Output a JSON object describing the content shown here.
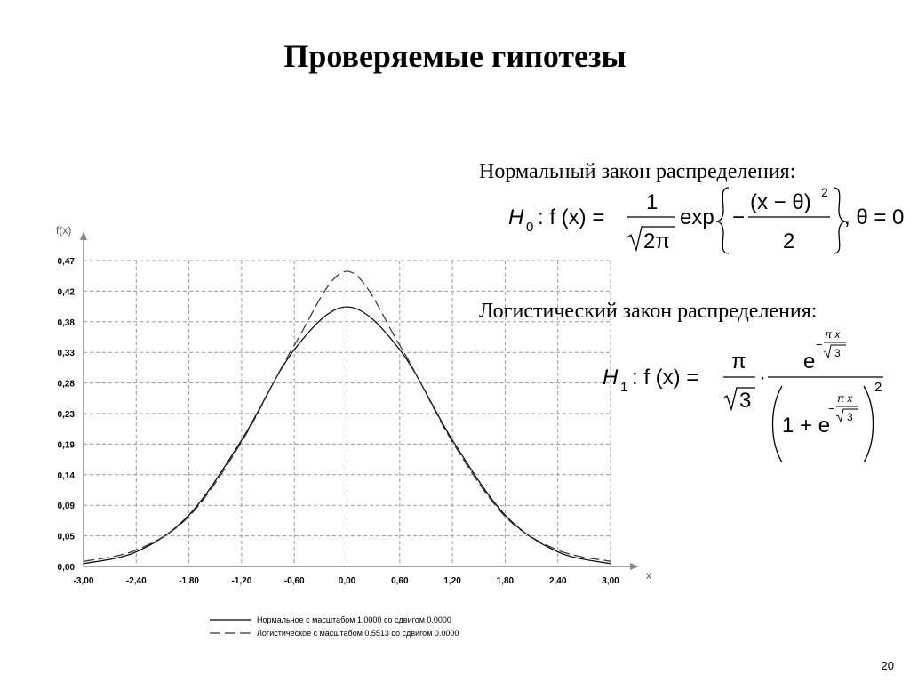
{
  "slide": {
    "title": "Проверяемые гипотезы",
    "page_number": "20"
  },
  "hypotheses": {
    "h0": {
      "heading": "Нормальный закон распределения:",
      "lhs": "H",
      "subscript": "0",
      "func": ": f (x) =",
      "numerator": "1",
      "denominator": "2π",
      "exp": "exp",
      "minus": "−",
      "exp_numerator": "(x − θ)",
      "exp_power": "2",
      "exp_denominator": "2",
      "condition": ", θ = 0"
    },
    "h1": {
      "heading": "Логистический закон распределения:",
      "lhs": "H",
      "subscript": "1",
      "func": ": f (x) =",
      "pi": "π",
      "sqrt_arg": "3",
      "dot": "·",
      "e": "e",
      "exponent_sign": "−",
      "exponent_num": "π x",
      "one_plus": "1 + e",
      "outer_power": "2"
    }
  },
  "chart_data": {
    "type": "line",
    "ylabel": "f(x)",
    "xlabel": "x",
    "xlim": [
      -3.0,
      3.0
    ],
    "ylim": [
      0.0,
      0.47
    ],
    "grid": true,
    "legend_placement": "bottom-center",
    "x_tick_labels": [
      "-3,00",
      "-2,40",
      "-1,80",
      "-1,20",
      "-0,60",
      "0,00",
      "0,60",
      "1,20",
      "1,80",
      "2,40",
      "3,00"
    ],
    "y_tick_labels": [
      "0,00",
      "0,05",
      "0,09",
      "0,14",
      "0,19",
      "0,23",
      "0,28",
      "0,33",
      "0,38",
      "0,42",
      "0,47"
    ],
    "x": [
      -3.0,
      -2.4,
      -1.8,
      -1.2,
      -0.6,
      0.0,
      0.6,
      1.2,
      1.8,
      2.4,
      3.0
    ],
    "series": [
      {
        "name": "Нормальное с масштабом 1.0000 со сдвигом 0.0000",
        "style": "solid",
        "color": "#000000",
        "values": [
          0.0044,
          0.0224,
          0.079,
          0.1942,
          0.3332,
          0.3989,
          0.3332,
          0.1942,
          0.079,
          0.0224,
          0.0044
        ]
      },
      {
        "name": "Логистическое с масштабом 0.5513 со сдвигом 0.0000",
        "style": "dashed",
        "color": "#333333",
        "values": [
          0.0078,
          0.0252,
          0.0769,
          0.1914,
          0.34,
          0.4535,
          0.34,
          0.1914,
          0.0769,
          0.0252,
          0.0078
        ]
      }
    ]
  }
}
